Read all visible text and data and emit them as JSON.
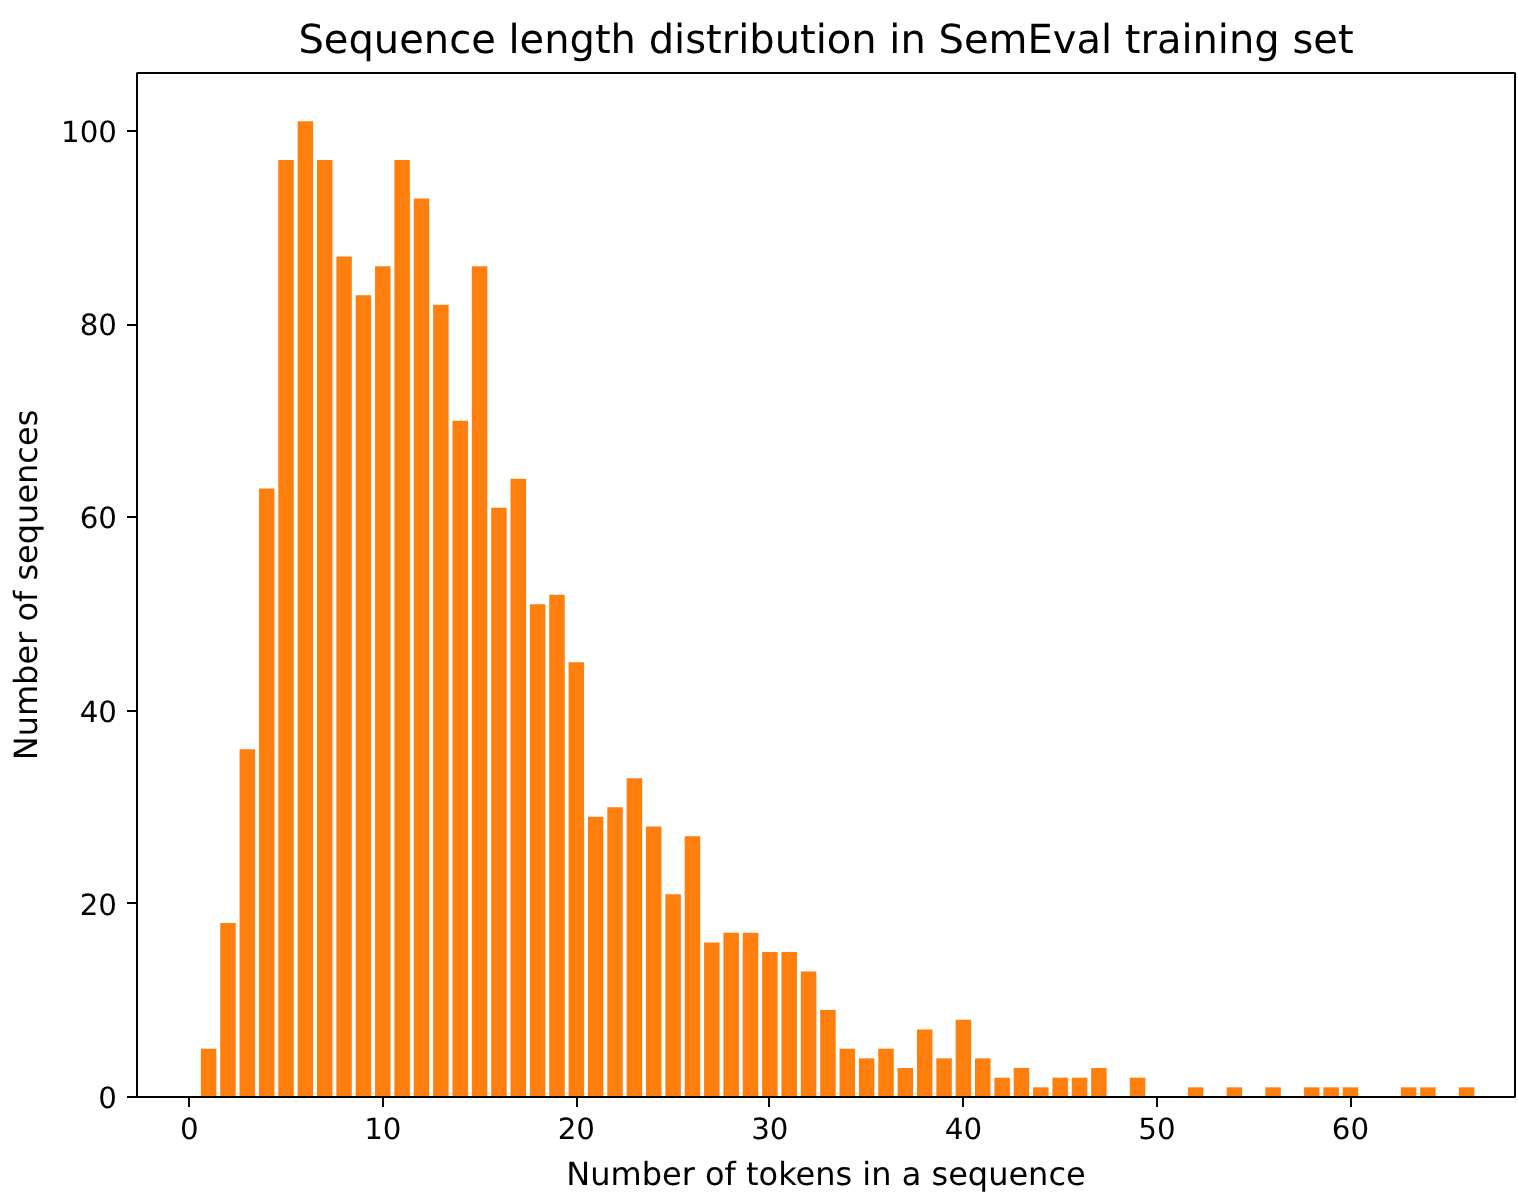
{
  "chart_data": {
    "type": "bar",
    "title": "Sequence length distribution in SemEval training set",
    "xlabel": "Number of tokens in a sequence",
    "ylabel": "Number of sequences",
    "x": [
      1,
      2,
      3,
      4,
      5,
      6,
      7,
      8,
      9,
      10,
      11,
      12,
      13,
      14,
      15,
      16,
      17,
      18,
      19,
      20,
      21,
      22,
      23,
      24,
      25,
      26,
      27,
      28,
      29,
      30,
      31,
      32,
      33,
      34,
      35,
      36,
      37,
      38,
      39,
      40,
      41,
      42,
      43,
      44,
      45,
      46,
      47,
      49,
      52,
      54,
      56,
      58,
      59,
      60,
      63,
      64,
      66
    ],
    "values": [
      5,
      18,
      36,
      63,
      97,
      101,
      97,
      87,
      83,
      86,
      97,
      93,
      82,
      70,
      86,
      61,
      64,
      51,
      52,
      45,
      29,
      30,
      33,
      28,
      21,
      27,
      16,
      17,
      17,
      15,
      15,
      13,
      9,
      5,
      4,
      5,
      3,
      7,
      4,
      8,
      4,
      2,
      3,
      1,
      2,
      2,
      3,
      2,
      1,
      1,
      1,
      1,
      1,
      1,
      1,
      1,
      1
    ],
    "color": "#ff7f0e",
    "xlim": [
      -2.7,
      68.5
    ],
    "ylim": [
      0,
      106
    ],
    "xticks": [
      0,
      10,
      20,
      30,
      40,
      50,
      60
    ],
    "yticks": [
      0,
      20,
      40,
      60,
      80,
      100
    ],
    "grid": false
  }
}
